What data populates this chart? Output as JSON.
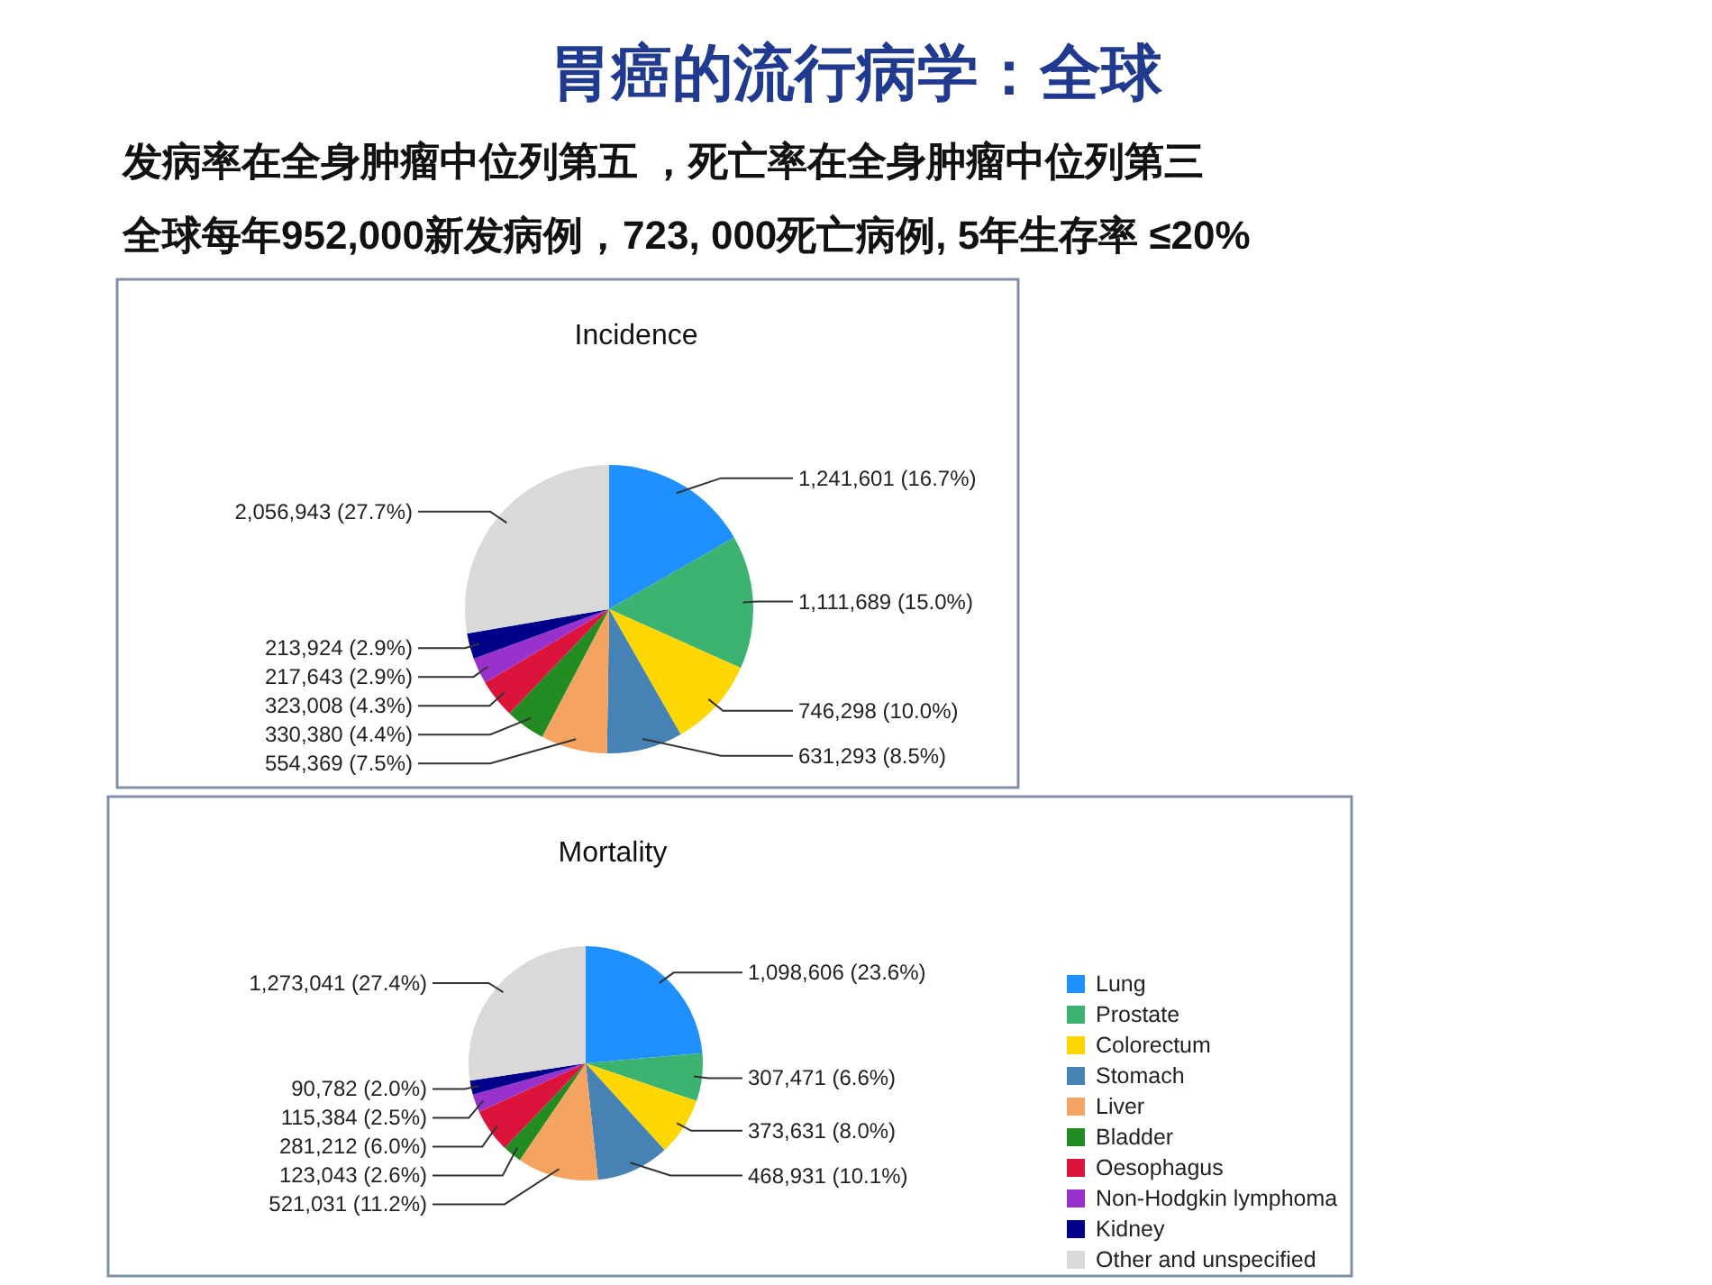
{
  "chart_data": [
    {
      "type": "pie",
      "title": "Incidence",
      "annotations": [
        "胃癌的流行病学：全球",
        "发病率在全身肿瘤中位列第五 ，死亡率在全身肿瘤中位列第三",
        "全球每年952,000新发病例，723, 000死亡病例, 5年生存率 ≤20%"
      ],
      "categories": [
        null,
        null,
        null,
        null,
        null,
        null,
        null,
        null,
        null,
        null
      ],
      "values": [
        1241601,
        1111689,
        746298,
        631293,
        554369,
        330380,
        323008,
        217643,
        213924,
        2056943
      ],
      "value_labels": [
        "1,241,601 (16.7%)",
        "1,111,689 (15.0%)",
        "746,298 (10.0%)",
        "631,293 (8.5%)",
        "554,369 (7.5%)",
        "330,380 (4.4%)",
        "323,008 (4.3%)",
        "217,643 (2.9%)",
        "213,924 (2.9%)",
        "2,056,943 (27.7%)"
      ],
      "colors": [
        "#1e90ff",
        "#3cb371",
        "#ffd700",
        "#4682b4",
        "#f4a460",
        "#228b22",
        "#dc143c",
        "#9932cc",
        "#00008b",
        "#d9d9d9"
      ]
    },
    {
      "type": "pie",
      "title": "Mortality",
      "legend": "right",
      "categories": [
        "Lung",
        "Prostate",
        "Colorectum",
        "Stomach",
        "Liver",
        "Bladder",
        "Oesophagus",
        "Non-Hodgkin lymphoma",
        "Kidney",
        "Other and unspecified"
      ],
      "values": [
        1098606,
        307471,
        373631,
        468931,
        521031,
        123043,
        281212,
        115384,
        90782,
        1273041
      ],
      "value_labels": [
        "1,098,606 (23.6%)",
        "307,471 (6.6%)",
        "373,631 (8.0%)",
        "468,931 (10.1%)",
        "521,031 (11.2%)",
        "123,043 (2.6%)",
        "281,212 (6.0%)",
        "115,384 (2.5%)",
        "90,782 (2.0%)",
        "1,273,041 (27.4%)"
      ],
      "colors": [
        "#1e90ff",
        "#3cb371",
        "#ffd700",
        "#4682b4",
        "#f4a460",
        "#228b22",
        "#dc143c",
        "#9932cc",
        "#00008b",
        "#d9d9d9"
      ]
    }
  ]
}
